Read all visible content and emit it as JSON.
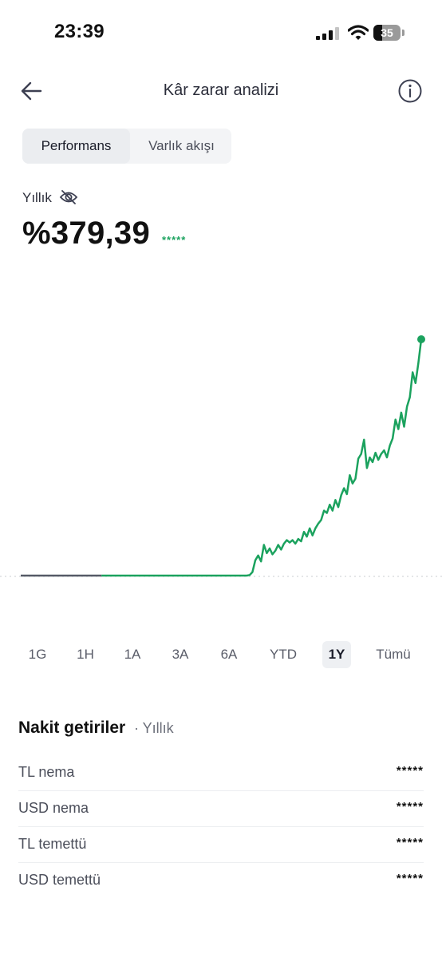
{
  "status_bar": {
    "time": "23:39",
    "battery_level": "35"
  },
  "header": {
    "title": "Kâr zarar analizi",
    "back_icon": "arrow-left-icon",
    "info_icon": "info-circle-icon"
  },
  "tabs": [
    {
      "label": "Performans",
      "active": true
    },
    {
      "label": "Varlık akışı",
      "active": false
    }
  ],
  "performance": {
    "period_label": "Yıllık",
    "value": "%379,39",
    "masked_amount": "*****",
    "visibility_icon": "eye-off-icon"
  },
  "chart_data": {
    "type": "line",
    "color": "#1ba25e",
    "baseline_color": "#555a66",
    "x_ticks": [],
    "y_ticks": [],
    "values": [
      0,
      0,
      0,
      0,
      0,
      0,
      0,
      0,
      0,
      0,
      0,
      0,
      0,
      0,
      0,
      0,
      0,
      0,
      0,
      0,
      0,
      0,
      0,
      0,
      0,
      0,
      0,
      0,
      0,
      0,
      0,
      0,
      0,
      0,
      0,
      0,
      0,
      0,
      0,
      0,
      0,
      0,
      0,
      0,
      0,
      0,
      0,
      0,
      0,
      0,
      0,
      0,
      0,
      0,
      0,
      0,
      0,
      0,
      0,
      0,
      0,
      0,
      0,
      0,
      0,
      0,
      0,
      0,
      0,
      0,
      0,
      0,
      0,
      0,
      0,
      0,
      0,
      0,
      0,
      0,
      0.5,
      3,
      13,
      17,
      12,
      26,
      19,
      23,
      18,
      21,
      26,
      22,
      27,
      30,
      28,
      30,
      27,
      31,
      29,
      37,
      33,
      40,
      34,
      40,
      44,
      47,
      55,
      53,
      60,
      55,
      64,
      58,
      68,
      74,
      69,
      85,
      78,
      82,
      99,
      103,
      115,
      91,
      100,
      96,
      104,
      98,
      103,
      106,
      100,
      110,
      116,
      132,
      124,
      138,
      126,
      143,
      151,
      172,
      163,
      180,
      200
    ],
    "baseline_fraction": 0.28
  },
  "range_selector": {
    "options": [
      "1G",
      "1H",
      "1A",
      "3A",
      "6A",
      "YTD",
      "1Y",
      "Tümü"
    ],
    "selected": "1Y"
  },
  "cash_returns": {
    "title": "Nakit getiriler",
    "subtitle": "· Yıllık",
    "rows": [
      {
        "label": "TL nema",
        "value": "*****"
      },
      {
        "label": "USD nema",
        "value": "*****"
      },
      {
        "label": "TL temettü",
        "value": "*****"
      },
      {
        "label": "USD temettü",
        "value": "*****"
      }
    ]
  }
}
